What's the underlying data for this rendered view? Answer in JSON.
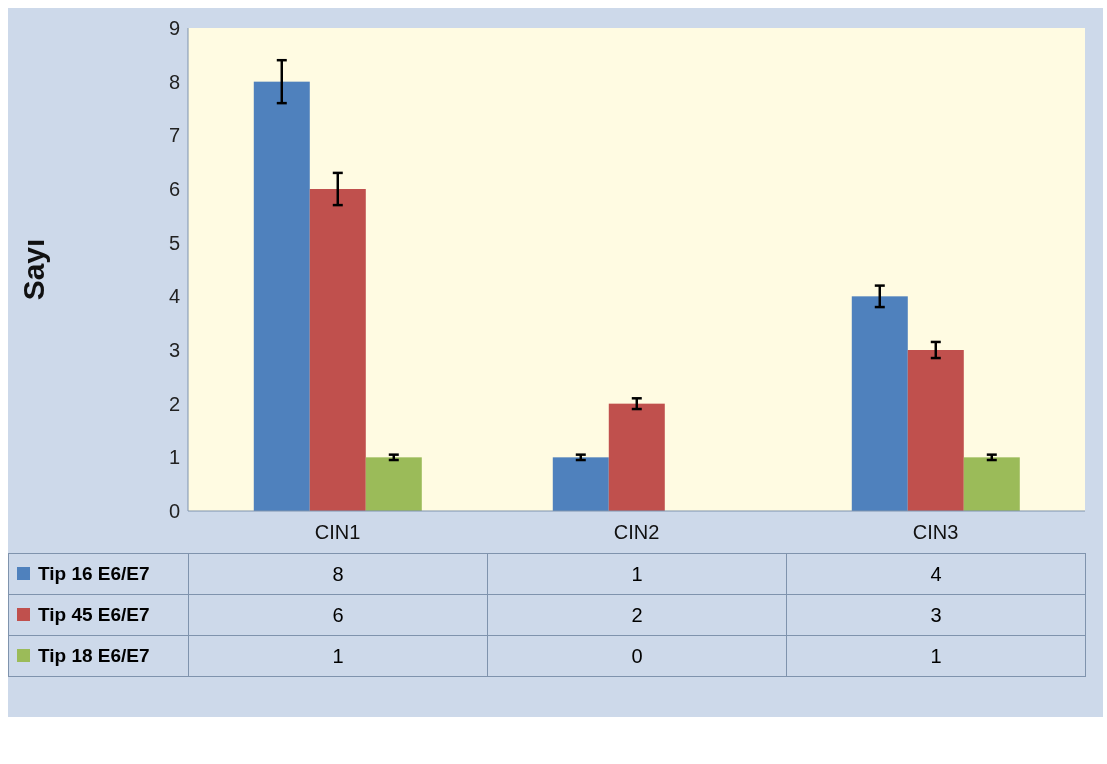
{
  "chart_data": {
    "type": "bar",
    "ylabel": "Sayı",
    "categories": [
      "CIN1",
      "CIN2",
      "CIN3"
    ],
    "series": [
      {
        "name": "Tip 16 E6/E7",
        "color": "#4f81bd",
        "values": [
          8,
          1,
          4
        ],
        "errors": [
          0.4,
          0.05,
          0.2
        ]
      },
      {
        "name": "Tip 45 E6/E7",
        "color": "#c0504d",
        "values": [
          6,
          2,
          3
        ],
        "errors": [
          0.3,
          0.1,
          0.15
        ]
      },
      {
        "name": "Tip 18 E6/E7",
        "color": "#9bbb59",
        "values": [
          1,
          0,
          1
        ],
        "errors": [
          0.05,
          null,
          0.05
        ]
      }
    ],
    "ylim": [
      0,
      9
    ],
    "yticks": [
      0,
      1,
      2,
      3,
      4,
      5,
      6,
      7,
      8,
      9
    ],
    "grid": false,
    "legend": "bottom",
    "data_labels": true
  }
}
